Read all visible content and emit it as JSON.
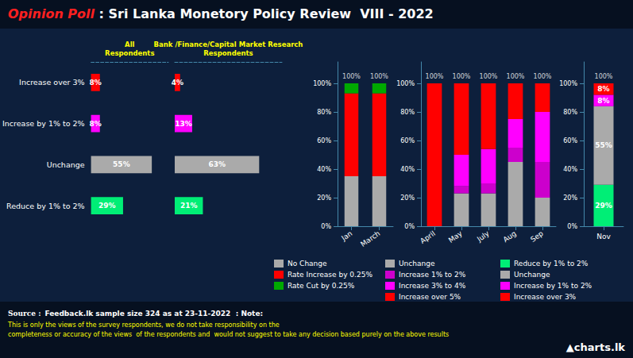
{
  "title": "Opinion Poll",
  "subtitle": " : Sri Lanka Monetory Policy Review  VIII - 2022",
  "annotations": [
    "Source :",
    "Feedback.lk sample size 324 as at 23-11-2022  : Note:",
    "This is only the views of the survey respondents, we do not take responsibility on the\ncompleteness or accuracy of the views  of the respondents and  would not suggest to take any decision based purely on the above results",
    "▲charts.lk"
  ],
  "chart_data": [
    {
      "type": "bar",
      "orientation": "horizontal",
      "title": "All\nRespondents",
      "categories": [
        "Increase over 3%",
        "Increase by 1% to 2%",
        "Unchange",
        "Reduce by 1% to 2%"
      ],
      "values": [
        8,
        8,
        55,
        29
      ],
      "value_labels": [
        "8%",
        "8%",
        "55%",
        "29%"
      ],
      "colors": [
        "#ff0000",
        "#ff00ff",
        "#aaaaaa",
        "#00ee76"
      ],
      "xlim": [
        0,
        70
      ],
      "data_labels": true,
      "tick_labels": "y",
      "grid": false
    },
    {
      "type": "bar",
      "orientation": "horizontal",
      "title": "Bank /Finance/Capital Market Research\nRespondents",
      "categories": [
        "Increase over 3%",
        "Increase by 1% to 2%",
        "Unchange",
        "Reduce by 1% to 2%"
      ],
      "values": [
        4,
        13,
        63,
        21
      ],
      "value_labels": [
        "4%",
        "13%",
        "63%",
        "21%"
      ],
      "colors": [
        "#ff0000",
        "#ff00ff",
        "#aaaaaa",
        "#00ee76"
      ],
      "xlim": [
        0,
        80
      ],
      "data_labels": true,
      "tick_labels": false,
      "grid": false
    },
    {
      "type": "bar",
      "stacked": true,
      "categories": [
        "Jan",
        "March"
      ],
      "series": [
        {
          "name": "No Change",
          "color": "#aaaaaa",
          "values": [
            35,
            35
          ]
        },
        {
          "name": "Rate Increase by 0.25%",
          "color": "#ff0000",
          "values": [
            58,
            58
          ]
        },
        {
          "name": "Rate Cut by 0.25%",
          "color": "#00aa00",
          "values": [
            7,
            7
          ]
        }
      ],
      "ylim": [
        0,
        115
      ],
      "yticks": [
        {
          "value": 0,
          "label": "0%"
        },
        {
          "value": 20,
          "label": "20%"
        },
        {
          "value": 40,
          "label": "40%"
        },
        {
          "value": 60,
          "label": "60%"
        },
        {
          "value": 80,
          "label": "80%"
        },
        {
          "value": 100,
          "label": "100%"
        }
      ],
      "grid": false,
      "annotations": [
        {
          "x": "Jan",
          "y": 102,
          "text": "100%"
        },
        {
          "x": "March",
          "y": 102,
          "text": "100%"
        }
      ]
    },
    {
      "type": "bar",
      "stacked": true,
      "categories": [
        "April",
        "May",
        "July",
        "Aug",
        "Sep"
      ],
      "series": [
        {
          "name": "Unchange",
          "color": "#aaaaaa",
          "values": [
            0,
            23,
            23,
            45,
            20
          ]
        },
        {
          "name": "Increase 1% to 2%",
          "color": "#cc00cc",
          "values": [
            0,
            5,
            7,
            10,
            25
          ]
        },
        {
          "name": "Increase 3% to 4%",
          "color": "#ff00ff",
          "values": [
            0,
            22,
            24,
            20,
            35
          ]
        },
        {
          "name": "Increase over 5%",
          "color": "#ff0000",
          "values": [
            100,
            50,
            46,
            25,
            20
          ]
        }
      ],
      "ylim": [
        0,
        115
      ],
      "yticks": [
        {
          "value": 0,
          "label": "0%"
        },
        {
          "value": 20,
          "label": "20%"
        },
        {
          "value": 40,
          "label": "40%"
        },
        {
          "value": 60,
          "label": "60%"
        },
        {
          "value": 80,
          "label": "80%"
        },
        {
          "value": 100,
          "label": "100%"
        }
      ],
      "grid": false,
      "annotations": [
        {
          "x": "April",
          "y": 102,
          "text": "100%"
        },
        {
          "x": "May",
          "y": 102,
          "text": "100%"
        },
        {
          "x": "July",
          "y": 102,
          "text": "100%"
        },
        {
          "x": "Aug",
          "y": 102,
          "text": "100%"
        },
        {
          "x": "Sep",
          "y": 102,
          "text": "100%"
        }
      ]
    },
    {
      "type": "bar",
      "stacked": true,
      "categories": [
        "Nov"
      ],
      "series": [
        {
          "name": "Reduce by 1% to 2%",
          "color": "#00ee76",
          "values": [
            29
          ],
          "value_labels": [
            "29%"
          ]
        },
        {
          "name": "Unchange",
          "color": "#aaaaaa",
          "values": [
            55
          ],
          "value_labels": [
            "55%"
          ]
        },
        {
          "name": "Increase by 1% to 2%",
          "color": "#ff00ff",
          "values": [
            8
          ],
          "value_labels": [
            "8%"
          ]
        },
        {
          "name": "Increase over 3%",
          "color": "#ff0000",
          "values": [
            8
          ],
          "value_labels": [
            "8%"
          ]
        }
      ],
      "ylim": [
        0,
        115
      ],
      "yticks": [
        {
          "value": 0,
          "label": "0%"
        },
        {
          "value": 20,
          "label": "20%"
        },
        {
          "value": 40,
          "label": "40%"
        },
        {
          "value": 60,
          "label": "60%"
        },
        {
          "value": 80,
          "label": "80%"
        },
        {
          "value": 100,
          "label": "100%"
        }
      ],
      "grid": false,
      "data_labels": true,
      "annotations": [
        {
          "x": "Nov",
          "y": 102,
          "text": "100%"
        }
      ]
    }
  ]
}
